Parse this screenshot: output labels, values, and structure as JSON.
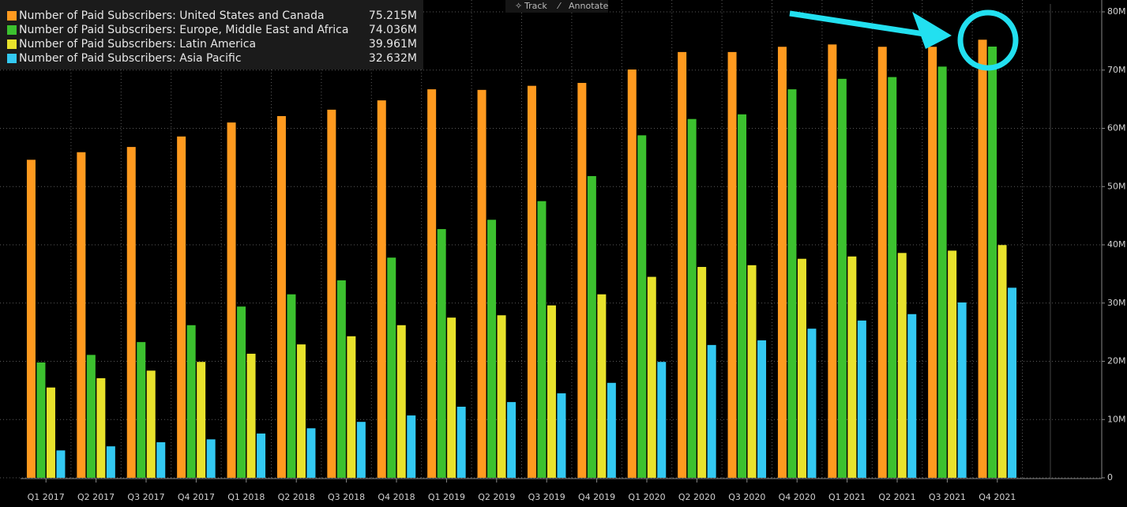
{
  "chart_data": {
    "type": "bar",
    "toolbar": [
      "Track",
      "Annotate"
    ],
    "categories": [
      "Q1 2017",
      "Q2 2017",
      "Q3 2017",
      "Q4 2017",
      "Q1 2018",
      "Q2 2018",
      "Q3 2018",
      "Q4 2018",
      "Q1 2019",
      "Q2 2019",
      "Q3 2019",
      "Q4 2019",
      "Q1 2020",
      "Q2 2020",
      "Q3 2020",
      "Q4 2020",
      "Q1 2021",
      "Q2 2021",
      "Q3 2021",
      "Q4 2021"
    ],
    "series": [
      {
        "name": "Number of Paid Subscribers: United States and Canada",
        "legend_value": "75.215M",
        "color": "#ff9a1f",
        "values": [
          54.6,
          55.9,
          56.8,
          58.6,
          61.0,
          62.1,
          63.2,
          64.8,
          66.7,
          66.6,
          67.3,
          67.8,
          70.1,
          73.1,
          73.1,
          74.0,
          74.4,
          74.0,
          74.0,
          75.215
        ]
      },
      {
        "name": "Number of Paid Subscribers: Europe, Middle East and Africa",
        "legend_value": "74.036M",
        "color": "#3cc12f",
        "values": [
          19.8,
          21.1,
          23.3,
          26.2,
          29.4,
          31.5,
          33.9,
          37.8,
          42.7,
          44.3,
          47.5,
          51.8,
          58.8,
          61.6,
          62.4,
          66.7,
          68.5,
          68.8,
          70.6,
          74.036
        ]
      },
      {
        "name": "Number of Paid Subscribers: Latin America",
        "legend_value": "39.961M",
        "color": "#e8e22c",
        "values": [
          15.5,
          17.1,
          18.4,
          19.9,
          21.3,
          22.9,
          24.3,
          26.2,
          27.5,
          27.9,
          29.6,
          31.5,
          34.5,
          36.2,
          36.5,
          37.6,
          38.0,
          38.6,
          39.0,
          39.961
        ]
      },
      {
        "name": "Number of Paid Subscribers: Asia Pacific",
        "legend_value": "32.632M",
        "color": "#33c9f2",
        "values": [
          4.7,
          5.4,
          6.1,
          6.6,
          7.6,
          8.5,
          9.6,
          10.7,
          12.2,
          13.0,
          14.5,
          16.3,
          19.9,
          22.8,
          23.6,
          25.6,
          27.0,
          28.1,
          30.1,
          32.632
        ]
      }
    ],
    "ylim": [
      0,
      80
    ],
    "yticks": [
      0,
      {
        "value": 10,
        "label": "10M"
      },
      {
        "value": 20,
        "label": "20M"
      },
      {
        "value": 30,
        "label": "30M"
      },
      {
        "value": 40,
        "label": "40M"
      },
      {
        "value": 50,
        "label": "50M"
      },
      {
        "value": 60,
        "label": "60M"
      },
      {
        "value": 70,
        "label": "70M"
      },
      {
        "value": 80,
        "label": "80M"
      }
    ],
    "grid": true
  }
}
